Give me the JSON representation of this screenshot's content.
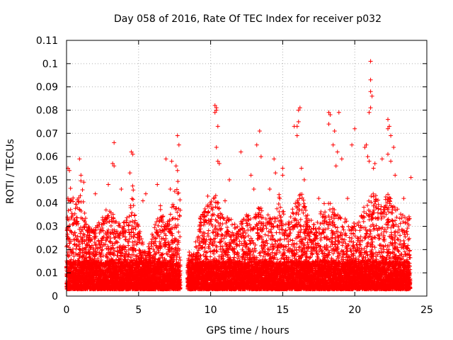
{
  "chart_data": {
    "type": "scatter",
    "title": "Day 058 of 2016, Rate Of TEC Index for receiver p032",
    "xlabel": "GPS time / hours",
    "ylabel": "ROTI / TECUs",
    "xlim": [
      0,
      25
    ],
    "ylim": [
      0,
      0.11
    ],
    "x_ticks": [
      "0",
      "5",
      "10",
      "15",
      "20",
      "25"
    ],
    "y_ticks": [
      "0",
      "0.01",
      "0.02",
      "0.03",
      "0.04",
      "0.05",
      "0.06",
      "0.07",
      "0.08",
      "0.09",
      "0.1",
      "0.11"
    ],
    "grid": true,
    "marker": "+",
    "color": "#ff0000",
    "data_gaps_hours": [
      [
        7.9,
        8.4
      ]
    ],
    "background_band": [
      0.003,
      0.015
    ],
    "envelope": [
      [
        0.0,
        0.03
      ],
      [
        0.2,
        0.05
      ],
      [
        0.6,
        0.038
      ],
      [
        1.0,
        0.052
      ],
      [
        1.4,
        0.03
      ],
      [
        1.8,
        0.03
      ],
      [
        2.3,
        0.032
      ],
      [
        2.8,
        0.038
      ],
      [
        3.3,
        0.035
      ],
      [
        3.8,
        0.03
      ],
      [
        4.3,
        0.035
      ],
      [
        4.6,
        0.048
      ],
      [
        5.0,
        0.03
      ],
      [
        5.5,
        0.018
      ],
      [
        6.1,
        0.03
      ],
      [
        6.5,
        0.04
      ],
      [
        6.9,
        0.03
      ],
      [
        7.3,
        0.04
      ],
      [
        7.7,
        0.052
      ],
      [
        7.9,
        0.04
      ],
      [
        8.4,
        0.02
      ],
      [
        8.8,
        0.018
      ],
      [
        9.3,
        0.035
      ],
      [
        9.8,
        0.04
      ],
      [
        10.3,
        0.045
      ],
      [
        10.8,
        0.035
      ],
      [
        11.3,
        0.035
      ],
      [
        11.8,
        0.03
      ],
      [
        12.3,
        0.035
      ],
      [
        12.8,
        0.035
      ],
      [
        13.3,
        0.04
      ],
      [
        13.8,
        0.035
      ],
      [
        14.3,
        0.035
      ],
      [
        14.8,
        0.045
      ],
      [
        15.3,
        0.03
      ],
      [
        15.8,
        0.04
      ],
      [
        16.3,
        0.045
      ],
      [
        16.8,
        0.035
      ],
      [
        17.3,
        0.03
      ],
      [
        17.8,
        0.04
      ],
      [
        18.3,
        0.04
      ],
      [
        18.8,
        0.035
      ],
      [
        19.3,
        0.035
      ],
      [
        19.8,
        0.03
      ],
      [
        20.3,
        0.035
      ],
      [
        20.8,
        0.04
      ],
      [
        21.3,
        0.045
      ],
      [
        21.8,
        0.04
      ],
      [
        22.3,
        0.045
      ],
      [
        22.8,
        0.04
      ],
      [
        23.3,
        0.035
      ],
      [
        23.8,
        0.035
      ]
    ],
    "notable_points": [
      [
        0.1,
        0.055
      ],
      [
        0.2,
        0.054
      ],
      [
        0.9,
        0.059
      ],
      [
        1.0,
        0.052
      ],
      [
        1.2,
        0.049
      ],
      [
        3.3,
        0.066
      ],
      [
        3.2,
        0.057
      ],
      [
        3.3,
        0.056
      ],
      [
        3.8,
        0.046
      ],
      [
        4.5,
        0.062
      ],
      [
        4.4,
        0.053
      ],
      [
        4.6,
        0.061
      ],
      [
        5.5,
        0.044
      ],
      [
        6.3,
        0.048
      ],
      [
        6.9,
        0.059
      ],
      [
        7.3,
        0.058
      ],
      [
        7.2,
        0.046
      ],
      [
        7.7,
        0.069
      ],
      [
        7.8,
        0.065
      ],
      [
        7.6,
        0.056
      ],
      [
        7.7,
        0.054
      ],
      [
        10.3,
        0.082
      ],
      [
        10.4,
        0.081
      ],
      [
        10.4,
        0.08
      ],
      [
        10.3,
        0.079
      ],
      [
        10.5,
        0.073
      ],
      [
        10.4,
        0.064
      ],
      [
        10.5,
        0.058
      ],
      [
        10.6,
        0.057
      ],
      [
        11.3,
        0.05
      ],
      [
        12.1,
        0.062
      ],
      [
        12.8,
        0.052
      ],
      [
        13.2,
        0.065
      ],
      [
        13.4,
        0.071
      ],
      [
        13.5,
        0.06
      ],
      [
        14.4,
        0.059
      ],
      [
        14.5,
        0.053
      ],
      [
        15.0,
        0.055
      ],
      [
        15.0,
        0.052
      ],
      [
        15.8,
        0.073
      ],
      [
        16.0,
        0.073
      ],
      [
        16.1,
        0.08
      ],
      [
        16.2,
        0.081
      ],
      [
        16.1,
        0.075
      ],
      [
        16.0,
        0.069
      ],
      [
        16.3,
        0.055
      ],
      [
        16.5,
        0.05
      ],
      [
        18.2,
        0.079
      ],
      [
        18.3,
        0.078
      ],
      [
        18.2,
        0.074
      ],
      [
        18.6,
        0.071
      ],
      [
        18.9,
        0.079
      ],
      [
        18.5,
        0.065
      ],
      [
        18.8,
        0.062
      ],
      [
        19.1,
        0.059
      ],
      [
        18.7,
        0.056
      ],
      [
        19.8,
        0.065
      ],
      [
        20.0,
        0.072
      ],
      [
        20.8,
        0.065
      ],
      [
        20.7,
        0.064
      ],
      [
        21.1,
        0.101
      ],
      [
        21.1,
        0.093
      ],
      [
        21.1,
        0.088
      ],
      [
        21.2,
        0.086
      ],
      [
        21.1,
        0.081
      ],
      [
        21.0,
        0.079
      ],
      [
        20.9,
        0.06
      ],
      [
        21.0,
        0.058
      ],
      [
        21.4,
        0.057
      ],
      [
        21.3,
        0.055
      ],
      [
        21.9,
        0.059
      ],
      [
        22.3,
        0.076
      ],
      [
        22.4,
        0.073
      ],
      [
        22.3,
        0.072
      ],
      [
        22.5,
        0.069
      ],
      [
        22.7,
        0.064
      ],
      [
        22.3,
        0.061
      ],
      [
        22.5,
        0.058
      ],
      [
        22.8,
        0.052
      ],
      [
        23.9,
        0.051
      ],
      [
        0.1,
        0.042
      ],
      [
        2.0,
        0.044
      ],
      [
        2.9,
        0.048
      ],
      [
        5.3,
        0.041
      ],
      [
        9.8,
        0.043
      ],
      [
        11.0,
        0.041
      ],
      [
        13.0,
        0.046
      ],
      [
        14.1,
        0.046
      ],
      [
        17.5,
        0.042
      ],
      [
        19.5,
        0.042
      ],
      [
        23.4,
        0.042
      ]
    ]
  }
}
